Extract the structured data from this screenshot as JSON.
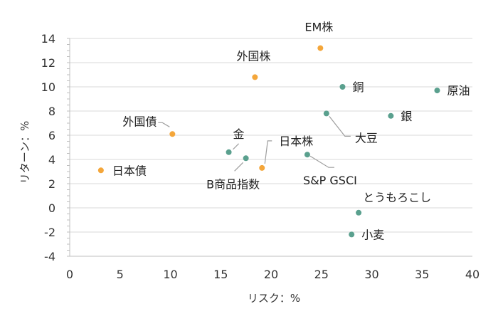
{
  "chart_data": {
    "type": "scatter",
    "title": "",
    "xlabel": "リスク：%",
    "ylabel": "リターン：%",
    "xlim": [
      0,
      40
    ],
    "ylim": [
      -4,
      14
    ],
    "x_ticks": [
      0,
      5,
      10,
      15,
      20,
      25,
      30,
      35,
      40
    ],
    "y_ticks": [
      -4,
      -2,
      0,
      2,
      4,
      6,
      8,
      10,
      12,
      14
    ],
    "grid": "horizontal",
    "colors": {
      "orange": "#f4a63a",
      "teal": "#5aa08e"
    },
    "points": [
      {
        "label": "日本債",
        "x": 3.1,
        "y": 3.1,
        "color": "orange"
      },
      {
        "label": "外国債",
        "x": 10.2,
        "y": 6.1,
        "color": "orange"
      },
      {
        "label": "外国株",
        "x": 18.4,
        "y": 10.8,
        "color": "orange"
      },
      {
        "label": "日本株",
        "x": 19.1,
        "y": 3.3,
        "color": "orange"
      },
      {
        "label": "EM株",
        "x": 24.9,
        "y": 13.2,
        "color": "orange"
      },
      {
        "label": "金",
        "x": 15.8,
        "y": 4.6,
        "color": "teal"
      },
      {
        "label": "B商品指数",
        "x": 17.5,
        "y": 4.1,
        "color": "teal"
      },
      {
        "label": "S&P GSCI",
        "x": 23.6,
        "y": 4.4,
        "color": "teal"
      },
      {
        "label": "大豆",
        "x": 25.5,
        "y": 7.8,
        "color": "teal"
      },
      {
        "label": "銅",
        "x": 27.1,
        "y": 10.0,
        "color": "teal"
      },
      {
        "label": "銀",
        "x": 31.9,
        "y": 7.6,
        "color": "teal"
      },
      {
        "label": "原油",
        "x": 36.5,
        "y": 9.7,
        "color": "teal"
      },
      {
        "label": "とうもろこし",
        "x": 28.7,
        "y": -0.4,
        "color": "teal"
      },
      {
        "label": "小麦",
        "x": 28.0,
        "y": -2.2,
        "color": "teal"
      }
    ]
  }
}
